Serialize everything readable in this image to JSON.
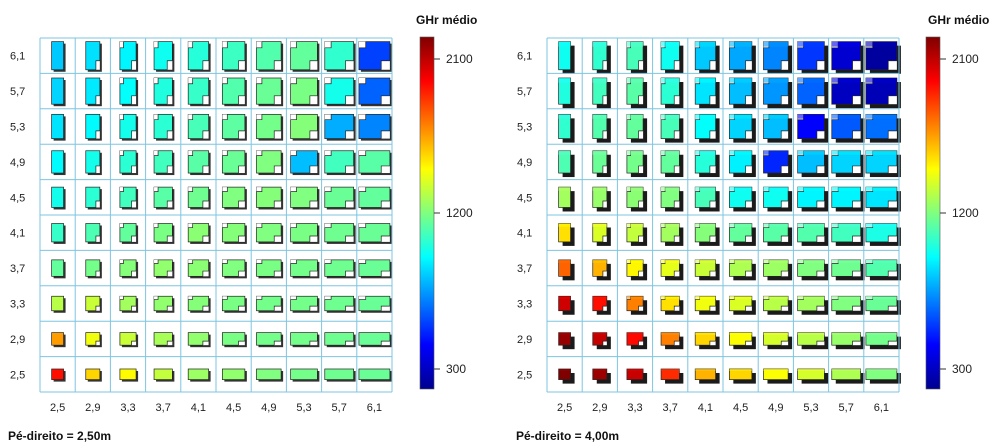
{
  "chart_data": [
    {
      "type": "heatmap",
      "title": "Pé-direito = 2,50m",
      "x_ticks": [
        "2,5",
        "2,9",
        "3,3",
        "3,7",
        "4,1",
        "4,5",
        "4,9",
        "5,3",
        "5,7",
        "6,1"
      ],
      "y_ticks": [
        "6,1",
        "5,7",
        "5,3",
        "4,9",
        "4,5",
        "4,1",
        "3,7",
        "3,3",
        "2,9",
        "2,5"
      ],
      "colorbar": {
        "title": "GHr médio",
        "ticks": [
          "2100",
          "1200",
          "300"
        ],
        "range": [
          300,
          2100
        ]
      },
      "cell_shading": "flat",
      "values": [
        [
          880,
          920,
          960,
          1000,
          1040,
          1080,
          1120,
          1150,
          1060,
          640
        ],
        [
          900,
          940,
          980,
          1030,
          1070,
          1120,
          1160,
          1190,
          1010,
          700
        ],
        [
          930,
          970,
          1010,
          1050,
          1100,
          1140,
          1180,
          1210,
          830,
          760
        ],
        [
          970,
          1010,
          1050,
          1090,
          1130,
          1160,
          1200,
          860,
          1090,
          1130
        ],
        [
          1010,
          1050,
          1090,
          1130,
          1170,
          1200,
          1210,
          1200,
          1160,
          1150
        ],
        [
          1070,
          1110,
          1150,
          1190,
          1220,
          1210,
          1200,
          1190,
          1170,
          1160
        ],
        [
          1150,
          1180,
          1210,
          1230,
          1220,
          1200,
          1190,
          1180,
          1170,
          1160
        ],
        [
          1300,
          1330,
          1260,
          1230,
          1210,
          1190,
          1180,
          1180,
          1170,
          1160
        ],
        [
          1600,
          1400,
          1330,
          1270,
          1230,
          1190,
          1180,
          1180,
          1170,
          1160
        ],
        [
          1850,
          1500,
          1430,
          1320,
          1250,
          1230,
          1200,
          1180,
          1170,
          1160
        ]
      ]
    },
    {
      "type": "heatmap",
      "title": "Pé-direito = 4,00m",
      "x_ticks": [
        "2,5",
        "2,9",
        "3,3",
        "3,7",
        "4,1",
        "4,5",
        "4,9",
        "5,3",
        "5,7",
        "6,1"
      ],
      "y_ticks": [
        "6,1",
        "5,7",
        "5,3",
        "4,9",
        "4,5",
        "4,1",
        "3,7",
        "3,3",
        "2,9",
        "2,5"
      ],
      "colorbar": {
        "title": "GHr médio",
        "ticks": [
          "2100",
          "1200",
          "300"
        ],
        "range": [
          300,
          2100
        ]
      },
      "cell_shading": "3d",
      "values": [
        [
          1000,
          1060,
          1100,
          1000,
          880,
          820,
          760,
          620,
          430,
          330
        ],
        [
          1030,
          1090,
          1130,
          1050,
          930,
          860,
          790,
          700,
          400,
          380
        ],
        [
          1060,
          1120,
          1150,
          1100,
          980,
          900,
          860,
          520,
          680,
          720
        ],
        [
          1110,
          1160,
          1180,
          1150,
          1040,
          950,
          590,
          860,
          900,
          900
        ],
        [
          1260,
          1240,
          1220,
          1200,
          1100,
          1000,
          1000,
          960,
          960,
          930
        ],
        [
          1480,
          1360,
          1320,
          1260,
          1210,
          1150,
          1130,
          1120,
          1090,
          1020
        ],
        [
          1700,
          1560,
          1440,
          1380,
          1330,
          1280,
          1250,
          1200,
          1170,
          1120
        ],
        [
          1960,
          1850,
          1650,
          1480,
          1400,
          1360,
          1300,
          1260,
          1200,
          1160
        ],
        [
          2060,
          1980,
          1860,
          1650,
          1500,
          1420,
          1350,
          1300,
          1240,
          1180
        ],
        [
          2140,
          2050,
          1970,
          1800,
          1560,
          1500,
          1420,
          1350,
          1280,
          1200
        ]
      ]
    }
  ]
}
